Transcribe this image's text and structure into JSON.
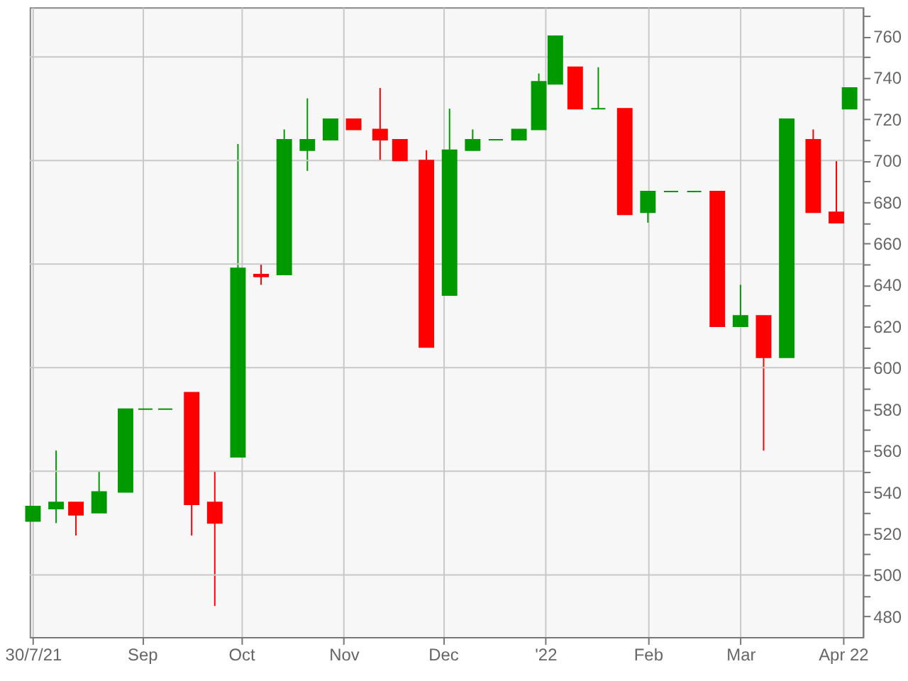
{
  "chart_data": {
    "type": "candlestick",
    "x": [
      "2021-07-30",
      "2021-08-06",
      "2021-08-12",
      "2021-08-19",
      "2021-08-27",
      "2021-09-02",
      "2021-09-08",
      "2021-09-16",
      "2021-09-23",
      "2021-09-30",
      "2021-10-07",
      "2021-10-14",
      "2021-10-21",
      "2021-10-28",
      "2021-11-04",
      "2021-11-12",
      "2021-11-18",
      "2021-11-26",
      "2021-12-03",
      "2021-12-10",
      "2021-12-17",
      "2021-12-24",
      "2021-12-30",
      "2022-01-04",
      "2022-01-10",
      "2022-01-17",
      "2022-01-25",
      "2022-02-01",
      "2022-02-08",
      "2022-02-15",
      "2022-02-22",
      "2022-03-01",
      "2022-03-08",
      "2022-03-15",
      "2022-03-23",
      "2022-03-30",
      "2022-04-03"
    ],
    "ohlc": [
      [
        526,
        533,
        526,
        533
      ],
      [
        532,
        560,
        525,
        535
      ],
      [
        535,
        535,
        519,
        529
      ],
      [
        530,
        550,
        530,
        540
      ],
      [
        540,
        580,
        540,
        580
      ],
      [
        580,
        580,
        580,
        580
      ],
      [
        580,
        580,
        580,
        580
      ],
      [
        588,
        588,
        519,
        534
      ],
      [
        535,
        550,
        485,
        525
      ],
      [
        557,
        708,
        557,
        648
      ],
      [
        645,
        650,
        640,
        644
      ],
      [
        645,
        715,
        645,
        710
      ],
      [
        705,
        730,
        695,
        710
      ],
      [
        710,
        720,
        710,
        720
      ],
      [
        720,
        720,
        715,
        715
      ],
      [
        715,
        735,
        700,
        710
      ],
      [
        710,
        710,
        700,
        700
      ],
      [
        700,
        705,
        610,
        610
      ],
      [
        635,
        725,
        635,
        705
      ],
      [
        705,
        715,
        705,
        710
      ],
      [
        710,
        710,
        710,
        710
      ],
      [
        710,
        715,
        710,
        715
      ],
      [
        715,
        742,
        715,
        738
      ],
      [
        737,
        760,
        737,
        760
      ],
      [
        745,
        745,
        725,
        725
      ],
      [
        725,
        745,
        725,
        725
      ],
      [
        725,
        725,
        674,
        674
      ],
      [
        675,
        685,
        670,
        685
      ],
      [
        685,
        685,
        685,
        685
      ],
      [
        685,
        685,
        685,
        685
      ],
      [
        685,
        685,
        620,
        620
      ],
      [
        620,
        640,
        620,
        625
      ],
      [
        625,
        625,
        560,
        605
      ],
      [
        605,
        720,
        605,
        720
      ],
      [
        710,
        715,
        675,
        675
      ],
      [
        675,
        700,
        670,
        670
      ],
      [
        725,
        735,
        725,
        735
      ]
    ],
    "colors": [
      "#009900",
      "#009900",
      "#ff0000",
      "#009900",
      "#009900",
      "#009900",
      "#009900",
      "#ff0000",
      "#ff0000",
      "#009900",
      "#ff0000",
      "#009900",
      "#009900",
      "#009900",
      "#ff0000",
      "#ff0000",
      "#ff0000",
      "#ff0000",
      "#009900",
      "#009900",
      "#009900",
      "#009900",
      "#009900",
      "#009900",
      "#ff0000",
      "#009900",
      "#ff0000",
      "#009900",
      "#009900",
      "#009900",
      "#ff0000",
      "#009900",
      "#ff0000",
      "#009900",
      "#ff0000",
      "#ff0000",
      "#009900"
    ],
    "xlim": [
      "2021-07-29",
      "2022-04-07"
    ],
    "xticks": [
      {
        "value": "2021-07-30",
        "label": "30/7/21"
      },
      {
        "value": "2021-09-01",
        "label": "Sep"
      },
      {
        "value": "2021-10-01",
        "label": "Oct"
      },
      {
        "value": "2021-11-01",
        "label": "Nov"
      },
      {
        "value": "2021-12-01",
        "label": "Dec"
      },
      {
        "value": "2022-01-01",
        "label": "'22"
      },
      {
        "value": "2022-02-01",
        "label": "Feb"
      },
      {
        "value": "2022-03-01",
        "label": "Mar"
      },
      {
        "value": "2022-04-01",
        "label": "Apr 22"
      }
    ],
    "ylim": [
      470,
      774
    ],
    "yticks": [
      480,
      {
        "value": 490,
        "label": null
      },
      500,
      {
        "value": 510,
        "label": null
      },
      520,
      {
        "value": 530,
        "label": null
      },
      540,
      {
        "value": 550,
        "label": null
      },
      560,
      {
        "value": 570,
        "label": null
      },
      580,
      {
        "value": 590,
        "label": null
      },
      600,
      {
        "value": 610,
        "label": null
      },
      620,
      {
        "value": 630,
        "label": null
      },
      640,
      {
        "value": 650,
        "label": null
      },
      660,
      {
        "value": 670,
        "label": null
      },
      680,
      {
        "value": 690,
        "label": null
      },
      700,
      {
        "value": 710,
        "label": null
      },
      720,
      {
        "value": 730,
        "label": null
      },
      740,
      {
        "value": 750,
        "label": null
      },
      760,
      {
        "value": 770,
        "label": null
      }
    ],
    "grid": true
  }
}
